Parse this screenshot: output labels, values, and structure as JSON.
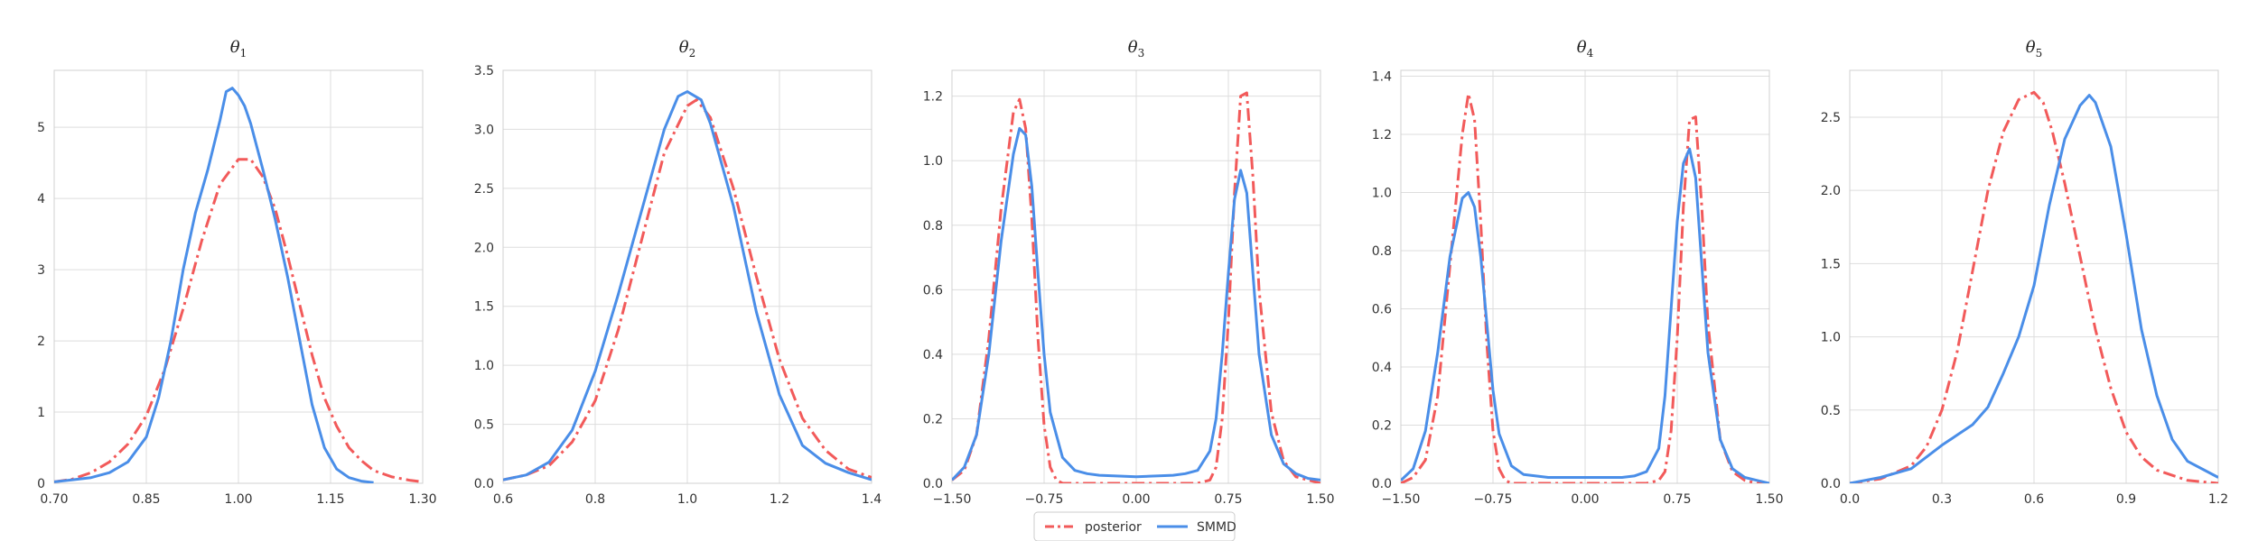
{
  "legend": {
    "entries": [
      {
        "label": "posterior",
        "color": "#f25a5a",
        "style": "dashdot"
      },
      {
        "label": "SMMD",
        "color": "#4a8ee8",
        "style": "solid"
      }
    ],
    "placement": "bottom-center"
  },
  "chart_data": [
    {
      "type": "line",
      "title": "θ",
      "title_sub": "1",
      "xlim": [
        0.7,
        1.3
      ],
      "ylim": [
        0,
        5.8
      ],
      "xticks": [
        0.7,
        0.85,
        1.0,
        1.15,
        1.3
      ],
      "xtick_labels": [
        "0.70",
        "0.85",
        "1.00",
        "1.15",
        "1.30"
      ],
      "yticks": [
        0,
        1,
        2,
        3,
        4,
        5
      ],
      "ytick_labels": [
        "0",
        "1",
        "2",
        "3",
        "4",
        "5"
      ],
      "grid": true,
      "series": [
        {
          "name": "posterior",
          "x": [
            0.7,
            0.73,
            0.76,
            0.79,
            0.82,
            0.85,
            0.88,
            0.91,
            0.94,
            0.97,
            1.0,
            1.02,
            1.04,
            1.06,
            1.08,
            1.1,
            1.12,
            1.14,
            1.16,
            1.18,
            1.2,
            1.22,
            1.25,
            1.28,
            1.3
          ],
          "y": [
            0.02,
            0.06,
            0.15,
            0.3,
            0.55,
            0.95,
            1.6,
            2.45,
            3.4,
            4.2,
            4.55,
            4.55,
            4.3,
            3.85,
            3.2,
            2.5,
            1.8,
            1.2,
            0.8,
            0.5,
            0.32,
            0.18,
            0.09,
            0.04,
            0.02
          ]
        },
        {
          "name": "SMMD",
          "x": [
            0.7,
            0.73,
            0.76,
            0.79,
            0.82,
            0.85,
            0.87,
            0.89,
            0.91,
            0.93,
            0.95,
            0.97,
            0.98,
            0.99,
            1.0,
            1.01,
            1.02,
            1.04,
            1.06,
            1.08,
            1.1,
            1.12,
            1.14,
            1.16,
            1.18,
            1.2,
            1.22
          ],
          "y": [
            0.02,
            0.05,
            0.08,
            0.15,
            0.3,
            0.65,
            1.2,
            2.0,
            3.0,
            3.8,
            4.4,
            5.1,
            5.5,
            5.55,
            5.45,
            5.3,
            5.05,
            4.4,
            3.7,
            2.9,
            2.0,
            1.1,
            0.5,
            0.2,
            0.08,
            0.03,
            0.01
          ]
        }
      ]
    },
    {
      "type": "line",
      "title": "θ",
      "title_sub": "2",
      "xlim": [
        0.6,
        1.4
      ],
      "ylim": [
        0,
        3.5
      ],
      "xticks": [
        0.6,
        0.8,
        1.0,
        1.2,
        1.4
      ],
      "xtick_labels": [
        "0.6",
        "0.8",
        "1.0",
        "1.2",
        "1.4"
      ],
      "yticks": [
        0,
        0.5,
        1.0,
        1.5,
        2.0,
        2.5,
        3.0,
        3.5
      ],
      "ytick_labels": [
        "0.0",
        "0.5",
        "1.0",
        "1.5",
        "2.0",
        "2.5",
        "3.0",
        "3.5"
      ],
      "grid": true,
      "series": [
        {
          "name": "posterior",
          "x": [
            0.6,
            0.65,
            0.7,
            0.75,
            0.8,
            0.85,
            0.9,
            0.95,
            1.0,
            1.02,
            1.05,
            1.1,
            1.15,
            1.2,
            1.25,
            1.3,
            1.35,
            1.4
          ],
          "y": [
            0.03,
            0.07,
            0.15,
            0.35,
            0.7,
            1.3,
            2.05,
            2.8,
            3.2,
            3.25,
            3.1,
            2.5,
            1.75,
            1.05,
            0.55,
            0.28,
            0.12,
            0.05
          ]
        },
        {
          "name": "SMMD",
          "x": [
            0.6,
            0.65,
            0.7,
            0.75,
            0.8,
            0.85,
            0.9,
            0.95,
            0.98,
            1.0,
            1.03,
            1.05,
            1.1,
            1.15,
            1.2,
            1.25,
            1.3,
            1.35,
            1.4
          ],
          "y": [
            0.03,
            0.07,
            0.18,
            0.45,
            0.95,
            1.6,
            2.3,
            3.0,
            3.28,
            3.32,
            3.25,
            3.05,
            2.35,
            1.45,
            0.75,
            0.32,
            0.17,
            0.09,
            0.03
          ]
        }
      ]
    },
    {
      "type": "line",
      "title": "θ",
      "title_sub": "3",
      "xlim": [
        -1.5,
        1.5
      ],
      "ylim": [
        0,
        1.28
      ],
      "xticks": [
        -1.5,
        -0.75,
        0.0,
        0.75,
        1.5
      ],
      "xtick_labels": [
        "−1.50",
        "−0.75",
        "0.00",
        "0.75",
        "1.50"
      ],
      "yticks": [
        0,
        0.2,
        0.4,
        0.6,
        0.8,
        1.0,
        1.2
      ],
      "ytick_labels": [
        "0.0",
        "0.2",
        "0.4",
        "0.6",
        "0.8",
        "1.0",
        "1.2"
      ],
      "grid": true,
      "series": [
        {
          "name": "posterior",
          "x": [
            -1.5,
            -1.4,
            -1.3,
            -1.2,
            -1.1,
            -1.0,
            -0.95,
            -0.9,
            -0.85,
            -0.8,
            -0.75,
            -0.7,
            -0.65,
            -0.6,
            -0.5,
            -0.4,
            0.0,
            0.4,
            0.5,
            0.6,
            0.65,
            0.7,
            0.75,
            0.8,
            0.85,
            0.9,
            0.95,
            1.0,
            1.1,
            1.2,
            1.3,
            1.4,
            1.5
          ],
          "y": [
            0.01,
            0.04,
            0.15,
            0.45,
            0.85,
            1.15,
            1.19,
            1.1,
            0.82,
            0.45,
            0.18,
            0.05,
            0.01,
            0.0,
            0.0,
            0.0,
            0.0,
            0.0,
            0.0,
            0.01,
            0.05,
            0.2,
            0.5,
            0.9,
            1.2,
            1.21,
            0.95,
            0.6,
            0.22,
            0.07,
            0.02,
            0.01,
            0.0
          ]
        },
        {
          "name": "SMMD",
          "x": [
            -1.5,
            -1.4,
            -1.3,
            -1.2,
            -1.1,
            -1.0,
            -0.95,
            -0.9,
            -0.85,
            -0.8,
            -0.75,
            -0.7,
            -0.6,
            -0.5,
            -0.4,
            -0.3,
            0.0,
            0.3,
            0.4,
            0.5,
            0.6,
            0.65,
            0.7,
            0.75,
            0.8,
            0.85,
            0.9,
            0.95,
            1.0,
            1.1,
            1.2,
            1.3,
            1.4,
            1.5
          ],
          "y": [
            0.01,
            0.05,
            0.15,
            0.4,
            0.75,
            1.02,
            1.1,
            1.08,
            0.92,
            0.65,
            0.4,
            0.22,
            0.08,
            0.04,
            0.03,
            0.025,
            0.02,
            0.025,
            0.03,
            0.04,
            0.1,
            0.2,
            0.4,
            0.65,
            0.88,
            0.97,
            0.9,
            0.65,
            0.4,
            0.15,
            0.06,
            0.03,
            0.015,
            0.01
          ]
        }
      ]
    },
    {
      "type": "line",
      "title": "θ",
      "title_sub": "4",
      "xlim": [
        -1.5,
        1.5
      ],
      "ylim": [
        0,
        1.42
      ],
      "xticks": [
        -1.5,
        -0.75,
        0.0,
        0.75,
        1.5
      ],
      "xtick_labels": [
        "−1.50",
        "−0.75",
        "0.00",
        "0.75",
        "1.50"
      ],
      "yticks": [
        0,
        0.2,
        0.4,
        0.6,
        0.8,
        1.0,
        1.2,
        1.4
      ],
      "ytick_labels": [
        "0.0",
        "0.2",
        "0.4",
        "0.6",
        "0.8",
        "1.0",
        "1.2",
        "1.4"
      ],
      "grid": true,
      "series": [
        {
          "name": "posterior",
          "x": [
            -1.5,
            -1.4,
            -1.3,
            -1.2,
            -1.1,
            -1.0,
            -0.95,
            -0.9,
            -0.85,
            -0.8,
            -0.75,
            -0.7,
            -0.65,
            -0.6,
            -0.5,
            -0.4,
            0.0,
            0.4,
            0.5,
            0.6,
            0.65,
            0.7,
            0.75,
            0.8,
            0.85,
            0.9,
            0.95,
            1.0,
            1.1,
            1.2,
            1.3,
            1.4,
            1.5
          ],
          "y": [
            0.0,
            0.02,
            0.08,
            0.3,
            0.75,
            1.2,
            1.34,
            1.25,
            0.9,
            0.48,
            0.18,
            0.05,
            0.01,
            0.0,
            0.0,
            0.0,
            0.0,
            0.0,
            0.0,
            0.01,
            0.04,
            0.18,
            0.5,
            0.95,
            1.25,
            1.26,
            0.95,
            0.55,
            0.15,
            0.04,
            0.01,
            0.0,
            0.0
          ]
        },
        {
          "name": "SMMD",
          "x": [
            -1.5,
            -1.4,
            -1.3,
            -1.2,
            -1.1,
            -1.0,
            -0.95,
            -0.9,
            -0.85,
            -0.8,
            -0.75,
            -0.7,
            -0.6,
            -0.5,
            -0.4,
            -0.3,
            0.0,
            0.3,
            0.4,
            0.5,
            0.6,
            0.65,
            0.7,
            0.75,
            0.8,
            0.85,
            0.9,
            0.95,
            1.0,
            1.1,
            1.2,
            1.3,
            1.4,
            1.5
          ],
          "y": [
            0.01,
            0.05,
            0.18,
            0.45,
            0.78,
            0.98,
            1.0,
            0.95,
            0.78,
            0.55,
            0.32,
            0.17,
            0.06,
            0.03,
            0.025,
            0.02,
            0.02,
            0.02,
            0.025,
            0.04,
            0.12,
            0.3,
            0.6,
            0.9,
            1.1,
            1.15,
            1.05,
            0.75,
            0.45,
            0.15,
            0.05,
            0.02,
            0.01,
            0.0
          ]
        }
      ]
    },
    {
      "type": "line",
      "title": "θ",
      "title_sub": "5",
      "xlim": [
        0.0,
        1.2
      ],
      "ylim": [
        0,
        2.82
      ],
      "xticks": [
        0.0,
        0.3,
        0.6,
        0.9,
        1.2
      ],
      "xtick_labels": [
        "0.0",
        "0.3",
        "0.6",
        "0.9",
        "1.2"
      ],
      "yticks": [
        0,
        0.5,
        1.0,
        1.5,
        2.0,
        2.5
      ],
      "ytick_labels": [
        "0.0",
        "0.5",
        "1.0",
        "1.5",
        "2.0",
        "2.5"
      ],
      "grid": true,
      "series": [
        {
          "name": "posterior",
          "x": [
            0.0,
            0.1,
            0.2,
            0.25,
            0.3,
            0.35,
            0.4,
            0.45,
            0.5,
            0.55,
            0.6,
            0.63,
            0.66,
            0.7,
            0.75,
            0.8,
            0.85,
            0.9,
            0.95,
            1.0,
            1.1,
            1.2
          ],
          "y": [
            0.0,
            0.03,
            0.12,
            0.25,
            0.5,
            0.9,
            1.45,
            2.0,
            2.4,
            2.62,
            2.67,
            2.6,
            2.4,
            2.05,
            1.55,
            1.05,
            0.65,
            0.35,
            0.18,
            0.09,
            0.02,
            0.0
          ]
        },
        {
          "name": "SMMD",
          "x": [
            0.0,
            0.1,
            0.2,
            0.25,
            0.3,
            0.35,
            0.4,
            0.45,
            0.5,
            0.55,
            0.6,
            0.65,
            0.7,
            0.75,
            0.78,
            0.8,
            0.85,
            0.9,
            0.95,
            1.0,
            1.05,
            1.1,
            1.2
          ],
          "y": [
            0.0,
            0.04,
            0.1,
            0.18,
            0.26,
            0.33,
            0.4,
            0.52,
            0.75,
            1.0,
            1.35,
            1.9,
            2.35,
            2.58,
            2.65,
            2.6,
            2.3,
            1.7,
            1.05,
            0.6,
            0.3,
            0.15,
            0.04
          ]
        }
      ]
    }
  ]
}
